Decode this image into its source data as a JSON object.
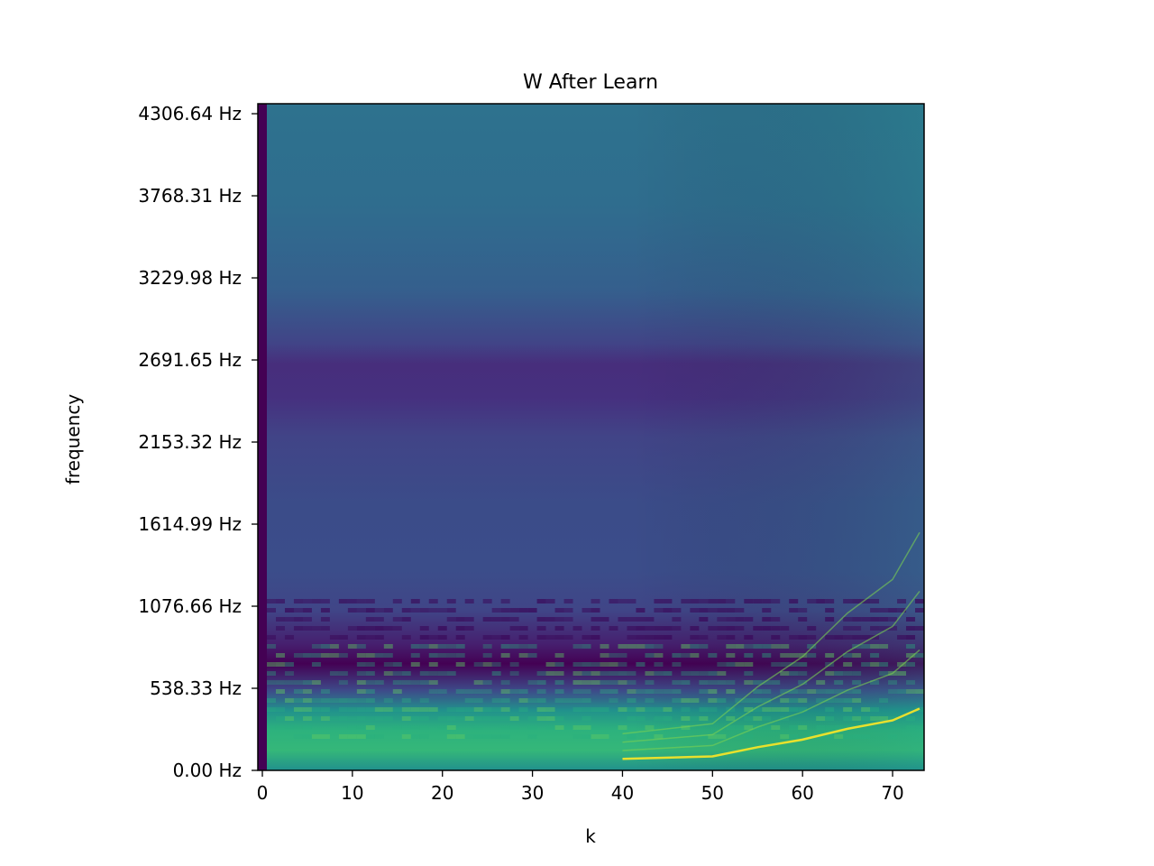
{
  "chart_data": {
    "type": "heatmap",
    "title": "W After Learn",
    "xlabel": "k",
    "ylabel": "frequency",
    "xlim": [
      -0.5,
      73.5
    ],
    "ylim": [
      0,
      4372
    ],
    "x_ticks": [
      0,
      10,
      20,
      30,
      40,
      50,
      60,
      70
    ],
    "y_ticks": [
      {
        "value": 0.0,
        "label": "0.00 Hz"
      },
      {
        "value": 538.33,
        "label": "538.33 Hz"
      },
      {
        "value": 1076.66,
        "label": "1076.66 Hz"
      },
      {
        "value": 1614.99,
        "label": "1614.99 Hz"
      },
      {
        "value": 2153.32,
        "label": "2153.32 Hz"
      },
      {
        "value": 2691.65,
        "label": "2691.65 Hz"
      },
      {
        "value": 3229.98,
        "label": "3229.98 Hz"
      },
      {
        "value": 3768.31,
        "label": "3768.31 Hz"
      },
      {
        "value": 4306.64,
        "label": "4306.64 Hz"
      }
    ],
    "colormap": "viridis",
    "grid": false,
    "description_bands": [
      {
        "freq_range": [
          2300,
          2600
        ],
        "level": "low"
      },
      {
        "freq_range": [
          700,
          1000
        ],
        "level": "low"
      },
      {
        "freq_range": [
          0,
          500
        ],
        "level": "high"
      }
    ],
    "harmonic_ridge": [
      {
        "k": 40,
        "freq": 100
      },
      {
        "k": 50,
        "freq": 130
      },
      {
        "k": 55,
        "freq": 240
      },
      {
        "k": 60,
        "freq": 330
      },
      {
        "k": 65,
        "freq": 460
      },
      {
        "k": 70,
        "freq": 560
      },
      {
        "k": 73,
        "freq": 700
      }
    ]
  }
}
